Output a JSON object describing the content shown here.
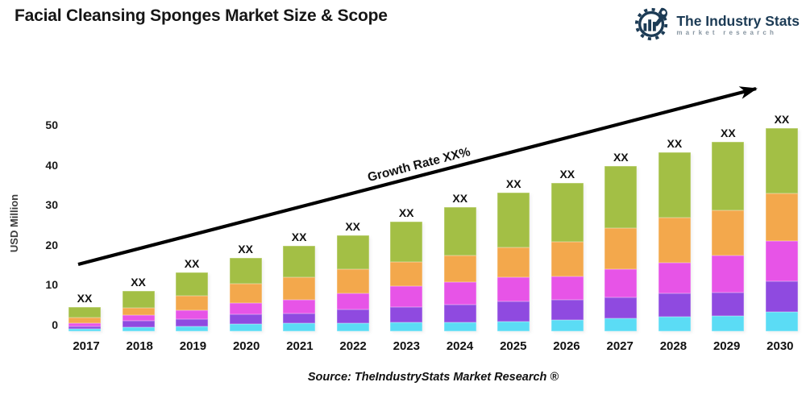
{
  "header": {
    "title": "Facial Cleansing Sponges Market Size & Scope",
    "logo": {
      "name": "The Industry Stats",
      "tagline": "market research",
      "color": "#1c3b55"
    }
  },
  "chart_data": {
    "type": "bar",
    "stacked": true,
    "title": "Facial Cleansing Sponges Market Size & Scope",
    "xlabel": "",
    "ylabel": "USD Million",
    "ylim": [
      0,
      50
    ],
    "yticks": [
      0,
      10,
      20,
      30,
      40,
      50
    ],
    "grid": false,
    "legend": "none",
    "bar_value_label": "XX",
    "categories": [
      2017,
      2018,
      2019,
      2020,
      2021,
      2022,
      2023,
      2024,
      2025,
      2026,
      2027,
      2028,
      2029,
      2030
    ],
    "series": [
      {
        "name": "segment-cyan",
        "color": "#5bdcf5",
        "values": [
          0.6,
          1.0,
          1.2,
          1.8,
          1.9,
          2.0,
          2.1,
          2.2,
          2.4,
          2.8,
          3.2,
          3.5,
          3.7,
          4.8
        ]
      },
      {
        "name": "segment-purple",
        "color": "#8f4ae0",
        "values": [
          0.6,
          1.5,
          1.7,
          2.3,
          2.5,
          3.3,
          3.9,
          4.4,
          4.9,
          4.9,
          5.1,
          5.9,
          5.8,
          7.4
        ]
      },
      {
        "name": "segment-magenta",
        "color": "#e754e7",
        "values": [
          0.9,
          1.5,
          2.2,
          2.9,
          3.3,
          4.0,
          5.0,
          5.5,
          5.9,
          5.8,
          7.0,
          7.5,
          9.1,
          9.9
        ]
      },
      {
        "name": "segment-orange",
        "color": "#f3a84c",
        "values": [
          1.3,
          1.8,
          3.7,
          4.8,
          5.5,
          6.0,
          6.1,
          6.6,
          7.5,
          8.6,
          10.0,
          11.0,
          11.1,
          11.8
        ]
      },
      {
        "name": "segment-green",
        "color": "#a3bf45",
        "values": [
          2.6,
          4.2,
          5.7,
          6.2,
          7.8,
          8.2,
          9.9,
          11.8,
          13.3,
          14.4,
          15.2,
          16.1,
          16.8,
          16.1
        ]
      }
    ],
    "totals": [
      6.0,
      10.0,
      14.5,
      18.0,
      21.0,
      23.5,
      27.0,
      30.5,
      34.0,
      36.5,
      40.5,
      44.0,
      46.5,
      50.0
    ],
    "annotation": {
      "text": "Growth Rate XX%",
      "arrow": "diagonal-up-right",
      "arrow_color": "#000000"
    }
  },
  "footer": {
    "source": "Source: TheIndustryStats Market Research ®"
  }
}
